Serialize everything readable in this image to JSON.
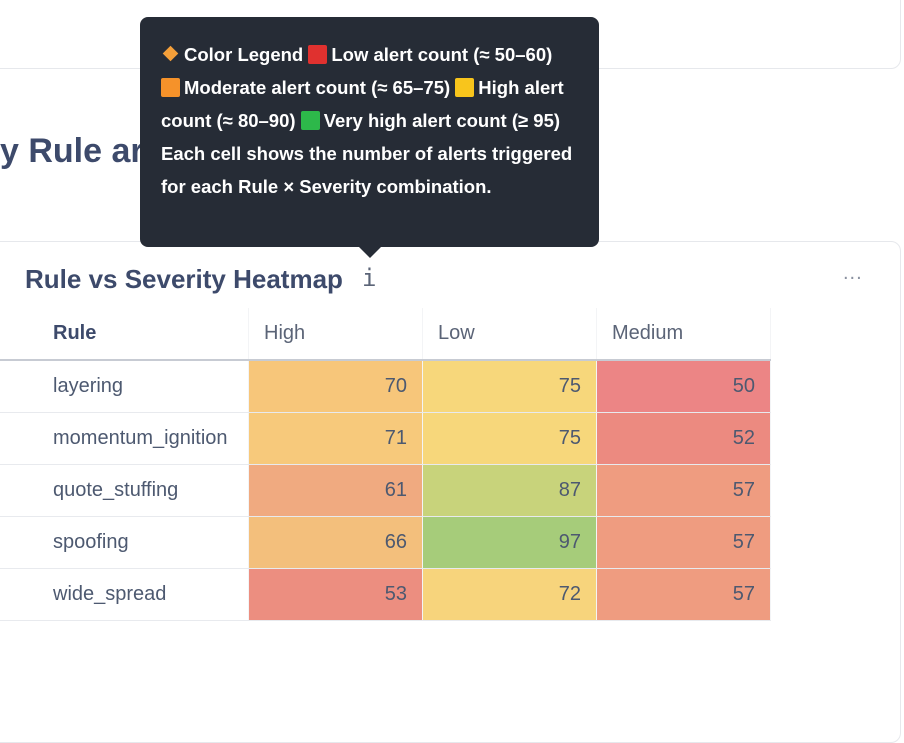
{
  "section": {
    "heading": "y Rule ar"
  },
  "tooltip": {
    "segments": [
      "Color Legend",
      "Low alert count (≈ 50–60)",
      "Moderate alert count (≈ 65–75)",
      "High alert count (≈ 80–90)",
      "Very high alert count (≥ 95)",
      "Each cell shows the number of alerts triggered for each Rule × Severity combination."
    ]
  },
  "card": {
    "title": "Rule vs Severity Heatmap",
    "info_icon": "i",
    "menu": "..."
  },
  "table": {
    "columns": [
      "Rule",
      "High",
      "Low",
      "Medium"
    ],
    "rows": [
      [
        "layering",
        "70",
        "75",
        "50"
      ],
      [
        "momentum_ignition",
        "71",
        "75",
        "52"
      ],
      [
        "quote_stuffing",
        "61",
        "87",
        "57"
      ],
      [
        "spoofing",
        "66",
        "97",
        "57"
      ],
      [
        "wide_spread",
        "53",
        "72",
        "57"
      ]
    ],
    "cell_colors": [
      [
        "#f7c67a",
        "#f7d77b",
        "#ec8585"
      ],
      [
        "#f7c97b",
        "#f7d77b",
        "#ec8a80"
      ],
      [
        "#f0aa80",
        "#c8d37b",
        "#ef9c80"
      ],
      [
        "#f3bf7c",
        "#a6cc7a",
        "#ef9c80"
      ],
      [
        "#ec8e80",
        "#f7d47c",
        "#ef9c80"
      ]
    ]
  }
}
